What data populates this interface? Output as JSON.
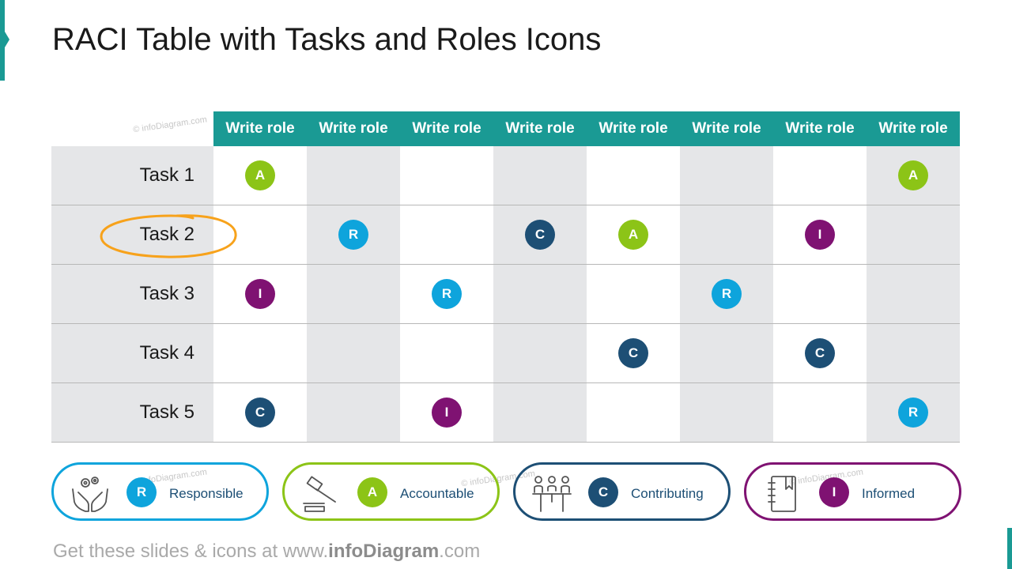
{
  "title": "RACI Table with Tasks and Roles Icons",
  "watermark": "© infoDiagram.com",
  "table": {
    "roles": [
      "Write role",
      "Write role",
      "Write role",
      "Write role",
      "Write role",
      "Write role",
      "Write role",
      "Write role"
    ],
    "tasks": [
      {
        "label": "Task 1",
        "cells": [
          "A",
          "",
          "",
          "",
          "",
          "",
          "",
          "A"
        ]
      },
      {
        "label": "Task 2",
        "cells": [
          "",
          "R",
          "",
          "C",
          "A",
          "",
          "I",
          ""
        ]
      },
      {
        "label": "Task 3",
        "cells": [
          "I",
          "",
          "R",
          "",
          "",
          "R",
          "",
          ""
        ]
      },
      {
        "label": "Task 4",
        "cells": [
          "",
          "",
          "",
          "",
          "C",
          "",
          "C",
          ""
        ]
      },
      {
        "label": "Task 5",
        "cells": [
          "C",
          "",
          "I",
          "",
          "",
          "",
          "",
          "R"
        ]
      }
    ],
    "highlighted_task_index": 1
  },
  "legend": [
    {
      "letter": "R",
      "label": "Responsible",
      "icon": "hands-gears-icon",
      "color": "#0ea4dc"
    },
    {
      "letter": "A",
      "label": "Accountable",
      "icon": "gavel-icon",
      "color": "#8cc417"
    },
    {
      "letter": "C",
      "label": "Contributing",
      "icon": "meeting-people-icon",
      "color": "#1d4f75"
    },
    {
      "letter": "I",
      "label": "Informed",
      "icon": "notebook-icon",
      "color": "#7f1272"
    }
  ],
  "footer": {
    "prefix": "Get these slides & icons at www.",
    "brand": "infoDiagram",
    "suffix": ".com"
  },
  "colors": {
    "header": "#1a9a94",
    "shade": "#e5e6e8",
    "highlight": "#f7a21b"
  }
}
